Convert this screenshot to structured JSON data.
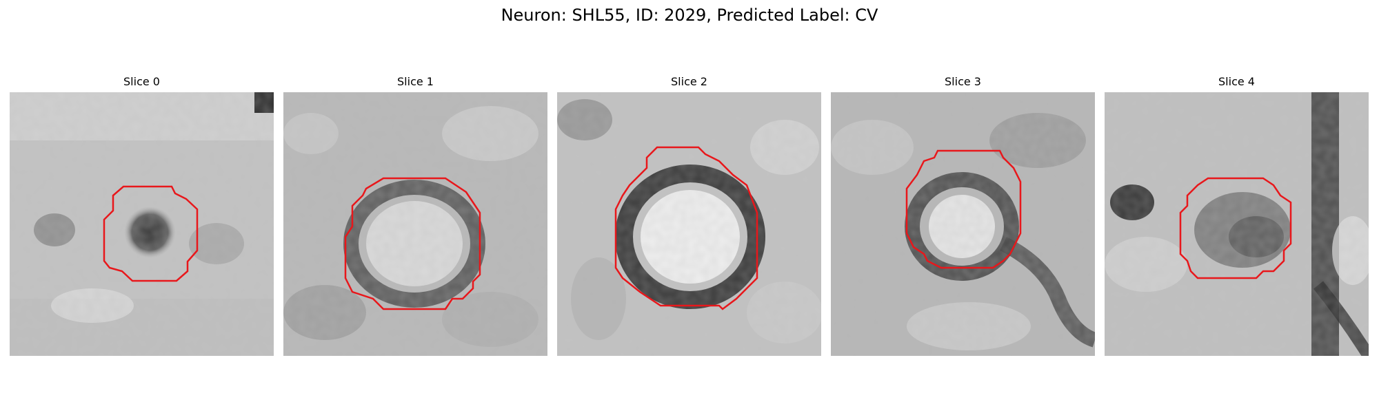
{
  "figure": {
    "title": "Neuron: SHL55, ID: 2029, Predicted Label: CV"
  },
  "panels": [
    {
      "title": "Slice 0",
      "content": "grayscale crop, dark blob in center"
    },
    {
      "title": "Slice 1",
      "content": "grayscale crop, bright center with dark ring"
    },
    {
      "title": "Slice 2",
      "content": "grayscale crop, bright center with thick dark ring"
    },
    {
      "title": "Slice 3",
      "content": "grayscale crop, smaller bright center with dark ring"
    },
    {
      "title": "Slice 4",
      "content": "grayscale crop, darker blob; vertical dark band at right"
    }
  ],
  "colors": {
    "outline": "#e8171b",
    "background": "#ffffff",
    "text": "#000000"
  }
}
